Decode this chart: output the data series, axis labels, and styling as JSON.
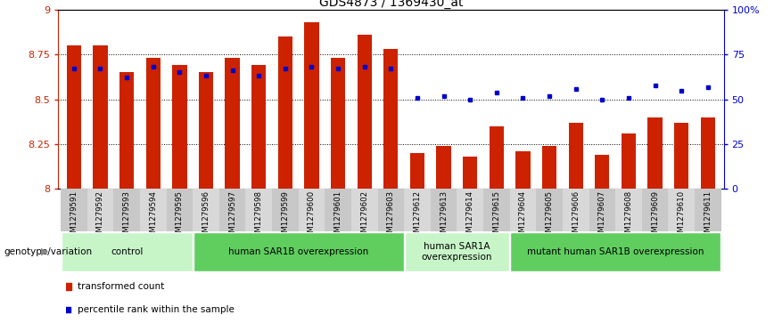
{
  "title": "GDS4873 / 1369430_at",
  "samples": [
    "GSM1279591",
    "GSM1279592",
    "GSM1279593",
    "GSM1279594",
    "GSM1279595",
    "GSM1279596",
    "GSM1279597",
    "GSM1279598",
    "GSM1279599",
    "GSM1279600",
    "GSM1279601",
    "GSM1279602",
    "GSM1279603",
    "GSM1279612",
    "GSM1279613",
    "GSM1279614",
    "GSM1279615",
    "GSM1279604",
    "GSM1279605",
    "GSM1279606",
    "GSM1279607",
    "GSM1279608",
    "GSM1279609",
    "GSM1279610",
    "GSM1279611"
  ],
  "bar_values": [
    8.8,
    8.8,
    8.65,
    8.73,
    8.69,
    8.65,
    8.73,
    8.69,
    8.85,
    8.93,
    8.73,
    8.86,
    8.78,
    8.2,
    8.24,
    8.18,
    8.35,
    8.21,
    8.24,
    8.37,
    8.19,
    8.31,
    8.4,
    8.37,
    8.4
  ],
  "dot_values": [
    67,
    67,
    62,
    68,
    65,
    63,
    66,
    63,
    67,
    68,
    67,
    68,
    67,
    51,
    52,
    50,
    54,
    51,
    52,
    56,
    50,
    51,
    58,
    55,
    57
  ],
  "groups": [
    {
      "label": "control",
      "start": 0,
      "end": 4,
      "color": "#c8f5c8"
    },
    {
      "label": "human SAR1B overexpression",
      "start": 5,
      "end": 12,
      "color": "#5fce5f"
    },
    {
      "label": "human SAR1A\noverexpression",
      "start": 13,
      "end": 16,
      "color": "#c8f5c8"
    },
    {
      "label": "mutant human SAR1B overexpression",
      "start": 17,
      "end": 24,
      "color": "#5fce5f"
    }
  ],
  "ylim_left": [
    8.0,
    9.0
  ],
  "ylim_right": [
    0,
    100
  ],
  "bar_color": "#cc2200",
  "dot_color": "#0000cc",
  "yticks_left": [
    8.0,
    8.25,
    8.5,
    8.75,
    9.0
  ],
  "yticks_right": [
    0,
    25,
    50,
    75,
    100
  ],
  "ytick_labels_left": [
    "8",
    "8.25",
    "8.5",
    "8.75",
    "9"
  ],
  "ytick_labels_right": [
    "0",
    "25",
    "50",
    "75",
    "100%"
  ],
  "genotype_label": "genotype/variation",
  "legend_items": [
    {
      "label": "transformed count",
      "color": "#cc2200"
    },
    {
      "label": "percentile rank within the sample",
      "color": "#0000cc"
    }
  ]
}
